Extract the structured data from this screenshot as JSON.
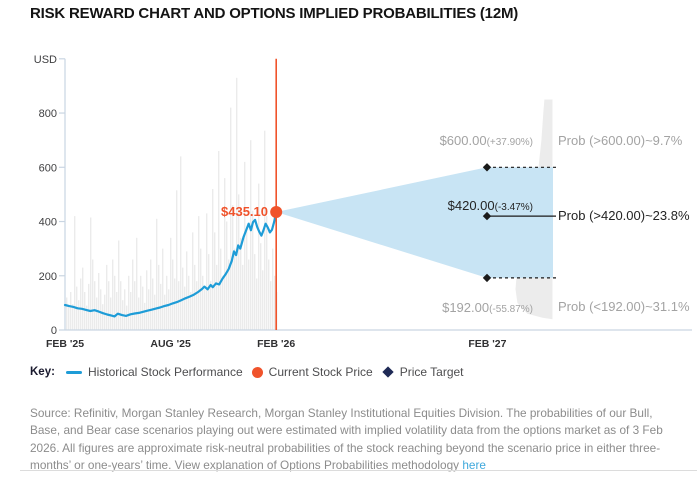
{
  "title": "RISK REWARD CHART AND OPTIONS IMPLIED PROBABILITIES (12M)",
  "colors": {
    "accent_orange": "#F0532B",
    "line_blue": "#1E9CD7",
    "cone_blue": "#C8E4F4",
    "bar_gray": "#EBEBEB",
    "dist_gray": "#ECECEC",
    "axis_gray": "#C9D5E2",
    "target_black": "#1A1A1A",
    "muted_text": "#A3A3A3",
    "dark_text": "#242424"
  },
  "chart_data": {
    "type": "line",
    "unit": "USD",
    "y_ticks": [
      0,
      200,
      400,
      600,
      800
    ],
    "y_axis_top_value": 1000,
    "ylim": [
      0,
      1000
    ],
    "x_axis": {
      "labels": [
        {
          "text": "FEB '25",
          "month": 0
        },
        {
          "text": "AUG '25",
          "month": 6
        },
        {
          "text": "FEB '26",
          "month": 12
        },
        {
          "text": "FEB '27",
          "month": 24
        }
      ]
    },
    "current_price": {
      "label": "$435.10",
      "value": 435.1,
      "month": 12
    },
    "price_series": {
      "name": "Historical Stock Performance",
      "months": [
        0,
        0.24,
        0.48,
        0.72,
        0.96,
        1.2,
        1.44,
        1.68,
        1.92,
        2.16,
        2.4,
        2.64,
        2.82,
        3.0,
        3.24,
        3.48,
        3.72,
        3.96,
        4.2,
        4.44,
        4.68,
        4.92,
        5.16,
        5.4,
        5.64,
        5.88,
        6.12,
        6.36,
        6.6,
        6.84,
        7.08,
        7.32,
        7.56,
        7.8,
        7.92,
        8.1,
        8.28,
        8.4,
        8.58,
        8.76,
        8.94,
        9.12,
        9.3,
        9.48,
        9.6,
        9.72,
        9.84,
        9.96,
        10.14,
        10.32,
        10.44,
        10.56,
        10.68,
        10.8,
        10.92,
        11.04,
        11.16,
        11.28,
        11.4,
        11.52,
        11.64,
        11.76,
        11.88,
        12
      ],
      "values": [
        92,
        88,
        85,
        80,
        78,
        74,
        70,
        73,
        68,
        62,
        57,
        53,
        50,
        60,
        55,
        52,
        58,
        61,
        63,
        67,
        71,
        75,
        79,
        83,
        88,
        92,
        98,
        103,
        110,
        117,
        123,
        130,
        140,
        152,
        160,
        150,
        166,
        158,
        172,
        168,
        188,
        205,
        225,
        255,
        290,
        276,
        312,
        300,
        342,
        372,
        392,
        368,
        398,
        406,
        380,
        362,
        348,
        368,
        392,
        378,
        360,
        370,
        398,
        435.1
      ]
    },
    "volume_bars": [
      120,
      85,
      140,
      95,
      420,
      160,
      110,
      190,
      230,
      140,
      90,
      170,
      415,
      260,
      180,
      120,
      210,
      150,
      95,
      130,
      240,
      180,
      120,
      260,
      200,
      140,
      330,
      180,
      110,
      150,
      90,
      200,
      140,
      260,
      180,
      340,
      120,
      200,
      160,
      100,
      220,
      150,
      260,
      190,
      130,
      410,
      240,
      170,
      300,
      130,
      200,
      150,
      340,
      260,
      190,
      515,
      180,
      640,
      230,
      160,
      290,
      200,
      140,
      360,
      240,
      180,
      420,
      300,
      200,
      150,
      430,
      280,
      180,
      520,
      360,
      240,
      660,
      300,
      200,
      560,
      400,
      260,
      820,
      460,
      300,
      930,
      500,
      340,
      240,
      620,
      380,
      260,
      700,
      440,
      280,
      190,
      540,
      320,
      220,
      735,
      420,
      260,
      180,
      300,
      200,
      140
    ],
    "targets": [
      {
        "price_label": "$600.00",
        "pct_label": "(+37.90%)",
        "prob_label": "Prob (>600.00)~9.7%",
        "value": 600,
        "probability_pct": 9.7,
        "line": "dashed",
        "emphasis": false
      },
      {
        "price_label": "$420.00",
        "pct_label": "(-3.47%)",
        "prob_label": "Prob (>420.00)~23.8%",
        "value": 420,
        "probability_pct": 23.8,
        "line": "solid",
        "emphasis": true
      },
      {
        "price_label": "$192.00",
        "pct_label": "(-55.87%)",
        "prob_label": "Prob (<192.00)~31.1%",
        "value": 192,
        "probability_pct": 31.1,
        "line": "dashed",
        "emphasis": false
      }
    ],
    "distribution": {
      "right_edge_month": 27.7,
      "samples": [
        [
          850,
          0.22
        ],
        [
          800,
          0.25
        ],
        [
          700,
          0.3
        ],
        [
          600,
          0.38
        ],
        [
          500,
          0.51
        ],
        [
          435,
          0.62
        ],
        [
          400,
          0.7
        ],
        [
          300,
          0.84
        ],
        [
          250,
          0.92
        ],
        [
          200,
          0.97
        ],
        [
          150,
          1.0
        ],
        [
          100,
          0.95
        ],
        [
          60,
          0.68
        ],
        [
          45,
          0.27
        ],
        [
          40,
          0.0
        ]
      ]
    }
  },
  "legend": {
    "key_label": "Key:",
    "items": [
      {
        "marker": "line",
        "label": "Historical Stock Performance"
      },
      {
        "marker": "dot",
        "label": "Current Stock Price"
      },
      {
        "marker": "diamond",
        "label": "Price Target"
      }
    ]
  },
  "source": {
    "text": "Source: Refinitiv, Morgan Stanley Research, Morgan Stanley Institutional Equities Division. The probabilities of our Bull, Base, and Bear case scenarios playing out were estimated with implied volatility data from the options market as of 3 Feb 2026. All figures are approximate risk-neutral probabilities of the stock reaching beyond the scenario price in either three-months’ or one-years’ time. View explanation of Options Probabilities methodology ",
    "link_text": "here"
  }
}
